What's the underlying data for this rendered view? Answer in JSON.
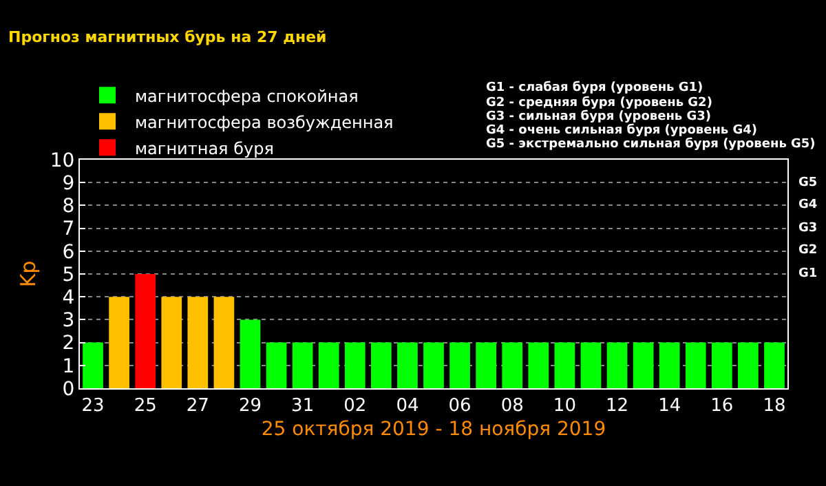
{
  "chart_data": {
    "type": "bar",
    "title": "Прогноз магнитных бурь на 27 дней",
    "xlabel": "25 октября 2019 - 18 ноября 2019",
    "ylabel": "Kp",
    "categories": [
      "23",
      null,
      "25",
      null,
      "27",
      null,
      "29",
      null,
      "31",
      null,
      "02",
      null,
      "04",
      null,
      "06",
      null,
      "08",
      null,
      "10",
      null,
      "12",
      null,
      "14",
      null,
      "16",
      null,
      "18"
    ],
    "series": [
      {
        "name": "магнитосфера спокойная",
        "color": "#00ff00",
        "values": [
          2,
          null,
          null,
          null,
          null,
          null,
          3,
          2,
          2,
          2,
          2,
          2,
          2,
          2,
          2,
          2,
          2,
          2,
          2,
          2,
          2,
          2,
          2,
          2,
          2,
          2,
          2
        ]
      },
      {
        "name": "магнитосфера возбужденная",
        "color": "#ffc000",
        "values": [
          null,
          4,
          null,
          4,
          4,
          4,
          null,
          null,
          null,
          null,
          null,
          null,
          null,
          null,
          null,
          null,
          null,
          null,
          null,
          null,
          null,
          null,
          null,
          null,
          null,
          null,
          null
        ]
      },
      {
        "name": "магнитная буря",
        "color": "#ff0000",
        "values": [
          null,
          null,
          5,
          null,
          null,
          null,
          null,
          null,
          null,
          null,
          null,
          null,
          null,
          null,
          null,
          null,
          null,
          null,
          null,
          null,
          null,
          null,
          null,
          null,
          null,
          null,
          null
        ]
      }
    ],
    "ylim": [
      0,
      10
    ],
    "yticks": [
      0,
      1,
      2,
      3,
      4,
      5,
      6,
      7,
      8,
      9,
      10
    ],
    "annotations": [
      "G1 - слабая буря (уровень G1)",
      "G2 - средняя буря (уровень G2)",
      "G3 - сильная буря (уровень G3)",
      "G4 - очень сильная буря (уровень G4)",
      "G5 - экстремально сильная буря (уровень G5)",
      "G5",
      "G4",
      "G3",
      "G2",
      "G1"
    ],
    "grid": "y",
    "legend": "top left"
  }
}
